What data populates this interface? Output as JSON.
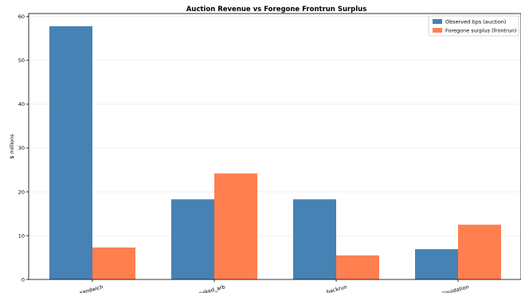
{
  "chart_data": {
    "type": "bar",
    "title": "Auction Revenue vs Foregone Frontrun Surplus",
    "xlabel": "",
    "ylabel": "$ millions",
    "categories": [
      "sandwich",
      "naked_arb",
      "backrun",
      "liquidation"
    ],
    "series": [
      {
        "name": "Observed tips (auction)",
        "color": "#4682b4",
        "values": [
          57.8,
          18.3,
          18.3,
          6.9
        ]
      },
      {
        "name": "Foregone surplus (frontrun)",
        "color": "#ff7f50",
        "values": [
          7.3,
          24.2,
          5.5,
          12.5
        ]
      }
    ],
    "ylim": [
      0,
      60.7
    ],
    "yticks": [
      0,
      10,
      20,
      30,
      40,
      50,
      60
    ],
    "grid": "y",
    "legend": "top-right"
  }
}
